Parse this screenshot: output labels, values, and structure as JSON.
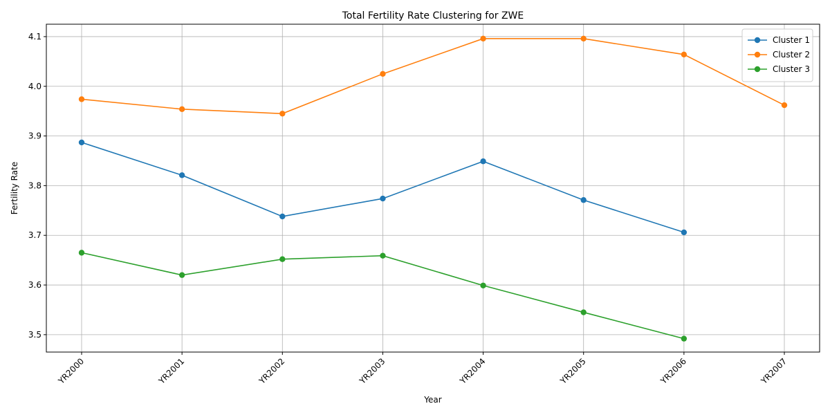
{
  "chart_data": {
    "type": "line",
    "title": "Total Fertility Rate Clustering for ZWE",
    "xlabel": "Year",
    "ylabel": "Fertility Rate",
    "categories": [
      "YR2000",
      "YR2001",
      "YR2002",
      "YR2003",
      "YR2004",
      "YR2005",
      "YR2006",
      "YR2007"
    ],
    "ylim": [
      3.465,
      4.125
    ],
    "yticks": [
      3.5,
      3.6,
      3.7,
      3.8,
      3.9,
      4.0,
      4.1
    ],
    "grid": true,
    "legend": "top-right",
    "series": [
      {
        "name": "Cluster 1",
        "color": "#1f77b4",
        "values": [
          3.887,
          3.821,
          3.738,
          3.774,
          3.849,
          3.771,
          3.706,
          null
        ]
      },
      {
        "name": "Cluster 2",
        "color": "#ff7f0e",
        "values": [
          3.974,
          3.954,
          3.945,
          4.025,
          4.096,
          4.096,
          4.064,
          3.962
        ]
      },
      {
        "name": "Cluster 3",
        "color": "#2ca02c",
        "values": [
          3.665,
          3.62,
          3.652,
          3.659,
          3.599,
          3.545,
          3.492,
          null
        ]
      }
    ]
  }
}
